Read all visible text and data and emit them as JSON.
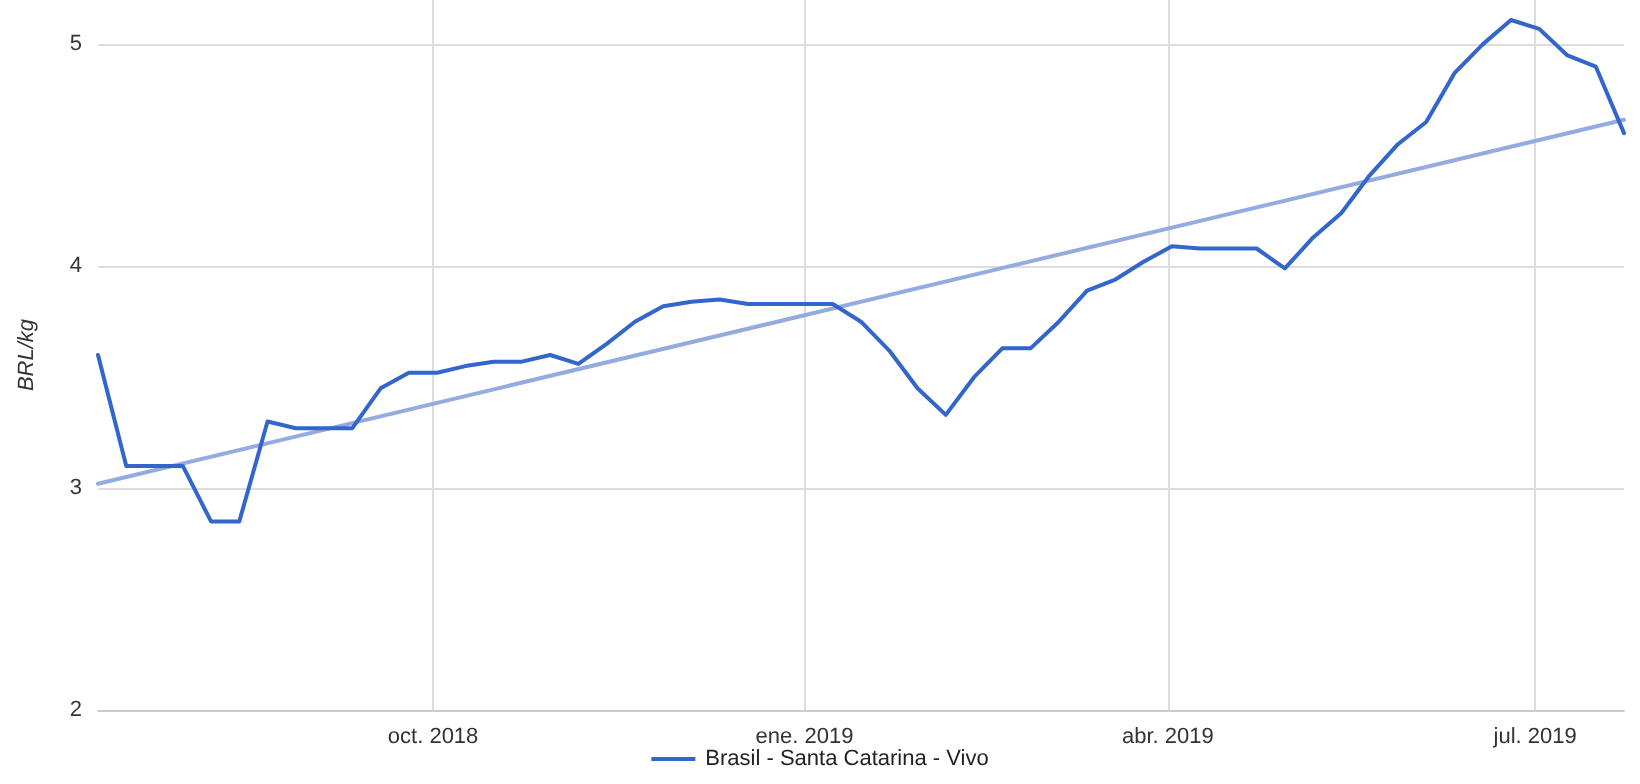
{
  "chart_data": {
    "type": "line",
    "ylabel": "BRL/kg",
    "x": [
      "2018-07-10",
      "2018-07-17",
      "2018-07-24",
      "2018-07-31",
      "2018-08-07",
      "2018-08-14",
      "2018-08-21",
      "2018-08-28",
      "2018-09-04",
      "2018-09-11",
      "2018-09-18",
      "2018-09-25",
      "2018-10-02",
      "2018-10-09",
      "2018-10-16",
      "2018-10-23",
      "2018-10-30",
      "2018-11-06",
      "2018-11-13",
      "2018-11-20",
      "2018-11-27",
      "2018-12-04",
      "2018-12-11",
      "2018-12-18",
      "2018-12-25",
      "2019-01-01",
      "2019-01-08",
      "2019-01-15",
      "2019-01-22",
      "2019-01-29",
      "2019-02-05",
      "2019-02-12",
      "2019-02-19",
      "2019-02-26",
      "2019-03-05",
      "2019-03-12",
      "2019-03-19",
      "2019-03-26",
      "2019-04-02",
      "2019-04-09",
      "2019-04-16",
      "2019-04-23",
      "2019-04-30",
      "2019-05-07",
      "2019-05-14",
      "2019-05-21",
      "2019-05-28",
      "2019-06-04",
      "2019-06-11",
      "2019-06-18",
      "2019-06-25",
      "2019-07-02",
      "2019-07-09",
      "2019-07-16",
      "2019-07-23"
    ],
    "series": [
      {
        "name": "Brasil - Santa Catarina - Vivo",
        "color": "#3366cc",
        "values": [
          3.6,
          3.1,
          3.1,
          3.1,
          2.85,
          2.85,
          3.3,
          3.27,
          3.27,
          3.27,
          3.45,
          3.52,
          3.52,
          3.55,
          3.57,
          3.57,
          3.6,
          3.56,
          3.65,
          3.75,
          3.82,
          3.84,
          3.85,
          3.83,
          3.83,
          3.83,
          3.83,
          3.75,
          3.62,
          3.45,
          3.33,
          3.5,
          3.63,
          3.63,
          3.75,
          3.89,
          3.94,
          4.02,
          4.09,
          4.08,
          4.08,
          4.08,
          3.99,
          4.13,
          4.24,
          4.41,
          4.55,
          4.65,
          4.87,
          5.0,
          5.11,
          5.07,
          4.95,
          4.9,
          4.6
        ]
      },
      {
        "type": "line",
        "color": "#93abe0",
        "x": [
          "2018-07-10",
          "2019-07-23"
        ],
        "values": [
          3.02,
          4.66
        ]
      }
    ],
    "xlim": [
      "2018-07-10",
      "2019-07-23"
    ],
    "xticks": [
      {
        "value": "2018-10-01",
        "label": "oct. 2018"
      },
      {
        "value": "2019-01-01",
        "label": "ene. 2019"
      },
      {
        "value": "2019-04-01",
        "label": "abr. 2019"
      },
      {
        "value": "2019-07-01",
        "label": "jul. 2019"
      }
    ],
    "ylim": [
      2,
      5.2
    ],
    "yticks": [
      2,
      3,
      4,
      5
    ],
    "grid": true,
    "legend": "bottom",
    "marker": "none",
    "line_style": "solid"
  }
}
